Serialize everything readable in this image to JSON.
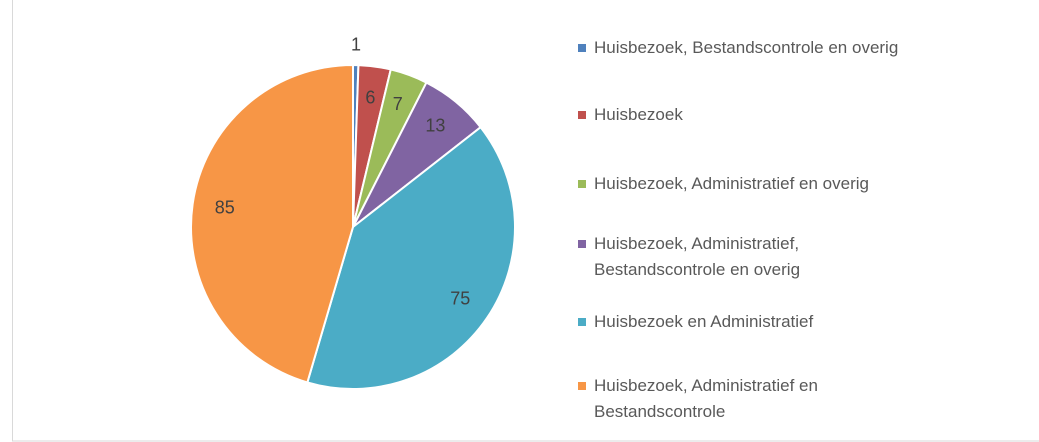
{
  "chart_data": {
    "type": "pie",
    "categories": [
      "Huisbezoek, Bestandscontrole en overig",
      "Huisbezoek",
      "Huisbezoek, Administratief en overig",
      "Huisbezoek, Administratief, Bestandscontrole en overig",
      "Huisbezoek en Administratief",
      "Huisbezoek, Administratief en Bestandscontrole"
    ],
    "values": [
      1,
      6,
      7,
      13,
      75,
      85
    ],
    "colors": [
      "#4f81bd",
      "#c0504d",
      "#9bbb59",
      "#8064a2",
      "#4bacc6",
      "#f79646"
    ],
    "legend": "right"
  }
}
